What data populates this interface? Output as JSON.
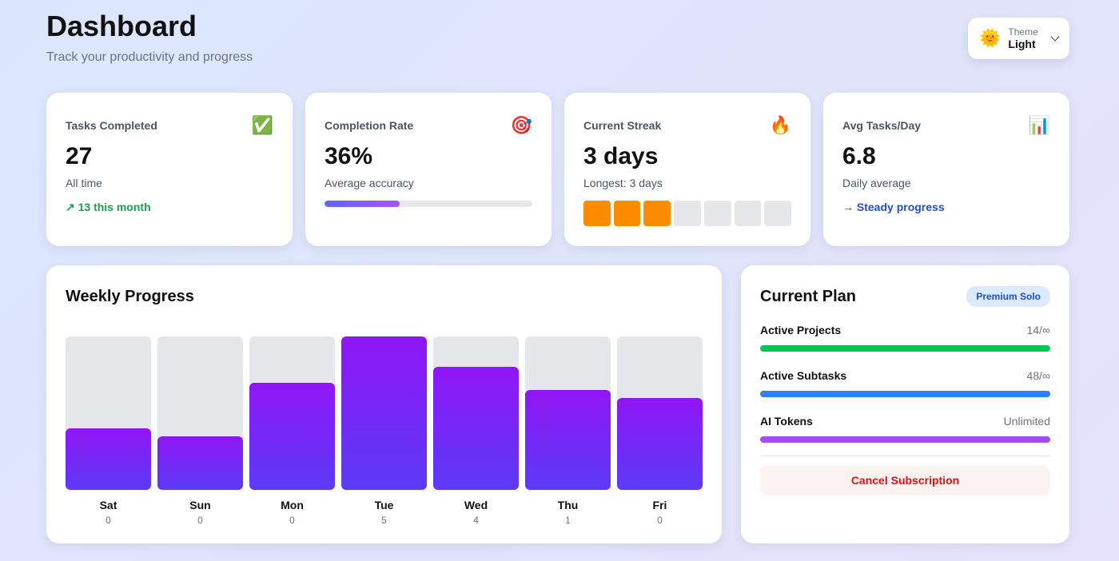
{
  "header": {
    "title": "Dashboard",
    "subtitle": "Track your productivity and progress"
  },
  "theme": {
    "label": "Theme",
    "value": "Light",
    "icon": "sun-icon"
  },
  "stats": [
    {
      "label": "Tasks Completed",
      "icon": "check-mark-icon",
      "glyph": "✅",
      "value": "27",
      "caption": "All time",
      "extra": "↗ 13 this month",
      "extra_color": "#16a34a"
    },
    {
      "label": "Completion Rate",
      "icon": "target-icon",
      "glyph": "🎯",
      "value": "36%",
      "caption": "Average accuracy",
      "progress_percent": 36
    },
    {
      "label": "Current Streak",
      "icon": "fire-icon",
      "glyph": "🔥",
      "value": "3 days",
      "caption": "Longest: 3 days",
      "streak_days_active": 3,
      "streak_days_total": 7
    },
    {
      "label": "Avg Tasks/Day",
      "icon": "bar-chart-icon",
      "glyph": "📊",
      "value": "6.8",
      "caption": "Daily average",
      "extra": "→ Steady progress",
      "extra_color": "#1d4ed8"
    }
  ],
  "weekly": {
    "title": "Weekly Progress",
    "days": [
      {
        "day": "Sat",
        "count": "0",
        "fill_percent": 40
      },
      {
        "day": "Sun",
        "count": "0",
        "fill_percent": 35
      },
      {
        "day": "Mon",
        "count": "0",
        "fill_percent": 70
      },
      {
        "day": "Tue",
        "count": "5",
        "fill_percent": 100
      },
      {
        "day": "Wed",
        "count": "4",
        "fill_percent": 80
      },
      {
        "day": "Thu",
        "count": "1",
        "fill_percent": 65
      },
      {
        "day": "Fri",
        "count": "0",
        "fill_percent": 60
      }
    ]
  },
  "plan": {
    "title": "Current Plan",
    "badge": "Premium Solo",
    "items": [
      {
        "label": "Active Projects",
        "value": "14/∞",
        "color": "#0ac451"
      },
      {
        "label": "Active Subtasks",
        "value": "48/∞",
        "color": "#2f7ff6"
      },
      {
        "label": "AI Tokens",
        "value": "Unlimited",
        "color": "#a64cf7"
      }
    ],
    "cancel_label": "Cancel Subscription"
  }
}
